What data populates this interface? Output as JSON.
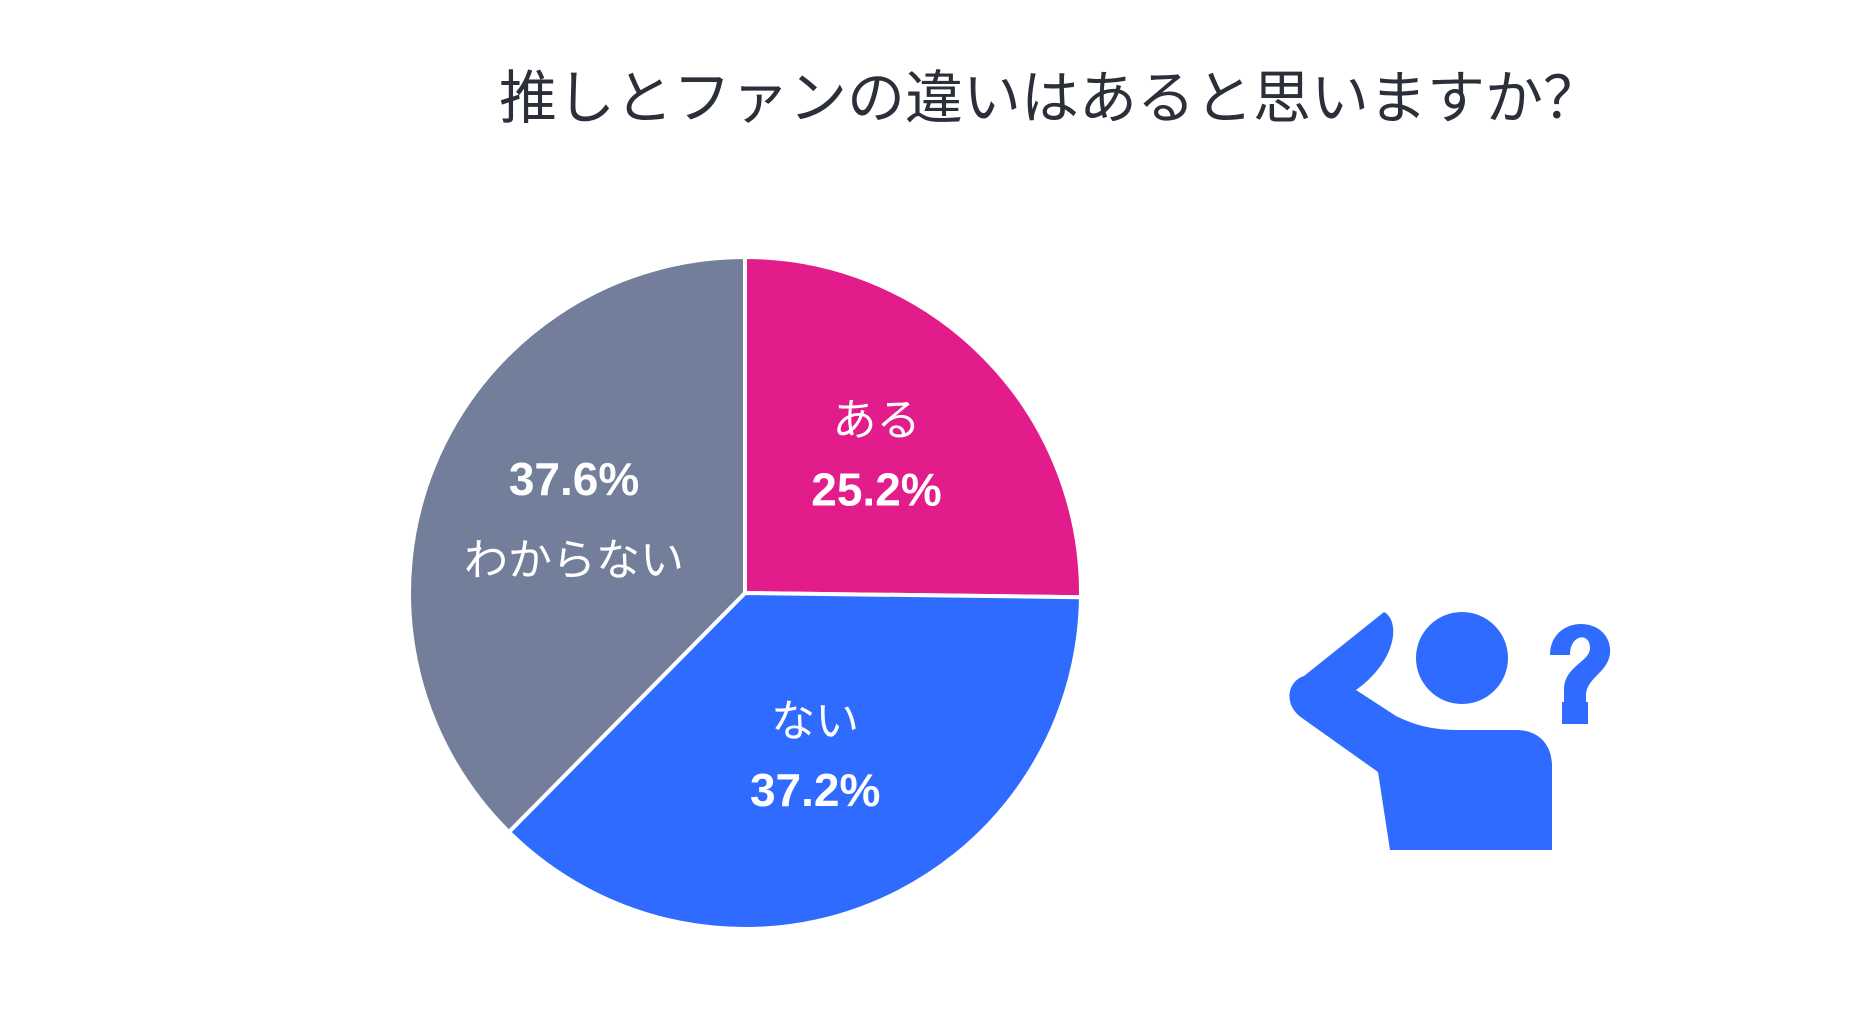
{
  "chart_data": {
    "type": "pie",
    "title": "推しとファンの違いはあると思いますか？",
    "categories": [
      "ある",
      "ない",
      "わからない"
    ],
    "values": [
      25.2,
      37.2,
      37.6
    ],
    "value_labels": [
      "25.2%",
      "37.2%",
      "37.6%"
    ],
    "colors": [
      "#e31c8c",
      "#2f6bff",
      "#737f9a"
    ]
  }
}
